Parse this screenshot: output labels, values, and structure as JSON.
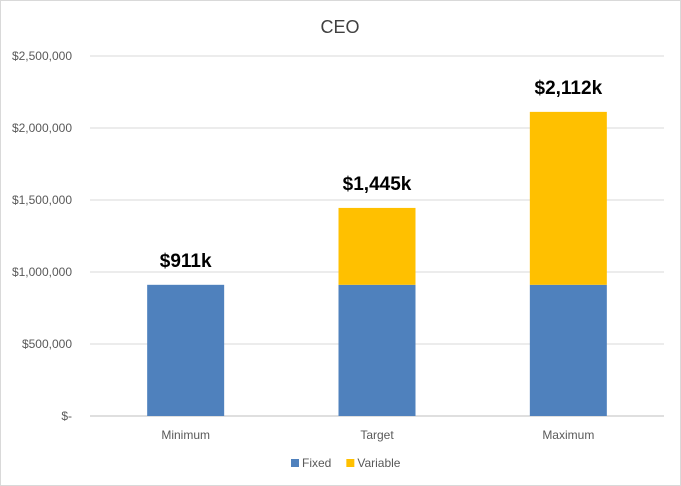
{
  "chart_data": {
    "type": "bar",
    "stacked": true,
    "title": "CEO",
    "xlabel": "",
    "ylabel": "",
    "categories": [
      "Minimum",
      "Target",
      "Maximum"
    ],
    "series": [
      {
        "name": "Fixed",
        "color": "#4F81BD",
        "values": [
          911000,
          911000,
          911000
        ]
      },
      {
        "name": "Variable",
        "color": "#FFC000",
        "values": [
          0,
          534000,
          1201000
        ]
      }
    ],
    "totals_labels": [
      "$911k",
      "$1,445k",
      "$2,112k"
    ],
    "ylim": [
      0,
      2500000
    ],
    "yticks": [
      0,
      500000,
      1000000,
      1500000,
      2000000,
      2500000
    ],
    "ytick_labels": [
      "$-",
      "$500,000",
      "$1,000,000",
      "$1,500,000",
      "$2,000,000",
      "$2,500,000"
    ],
    "grid": true,
    "legend_position": "bottom"
  }
}
